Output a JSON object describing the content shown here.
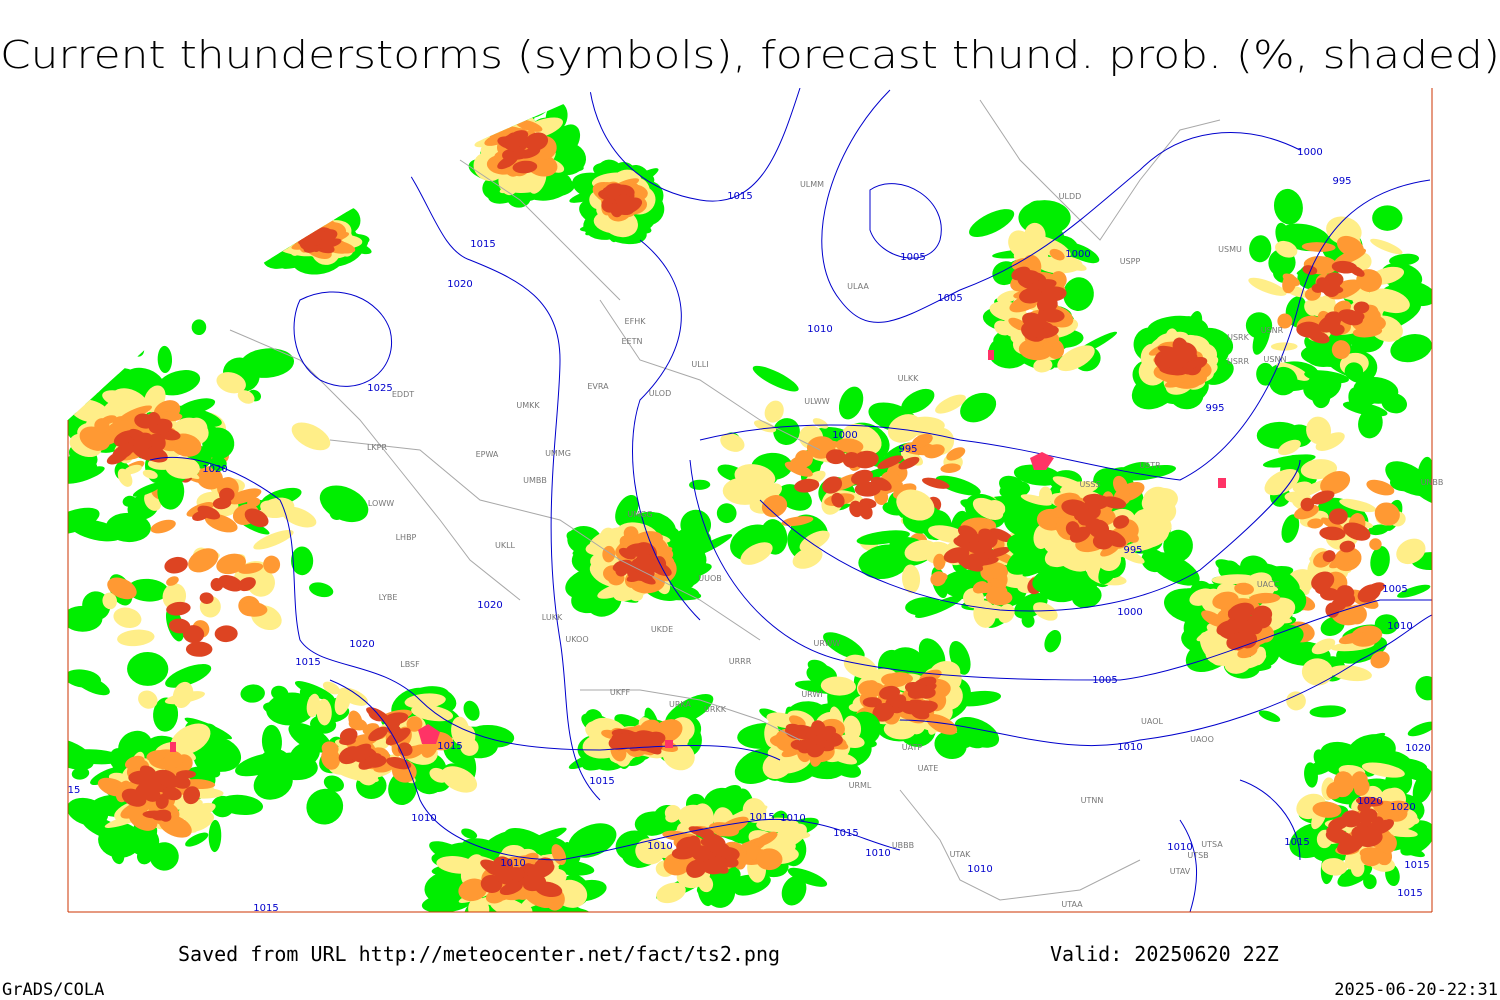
{
  "header": {
    "title": "Current thunderstorms (symbols), forecast thund. prob. (%, shaded)"
  },
  "map": {
    "isobar_labels": [
      "1015",
      "1015",
      "1020",
      "1025",
      "1005",
      "1005",
      "1010",
      "1000",
      "1000",
      "995",
      "995",
      "1000",
      "995",
      "1020",
      "995",
      "1000",
      "1005",
      "1010",
      "1020",
      "1020",
      "1015",
      "1005",
      "1015",
      "1010",
      "1015",
      "1010",
      "1015",
      "1010",
      "1015",
      "1010",
      "1010",
      "1010",
      "1010",
      "1010",
      "1015",
      "1020",
      "1020",
      "1015",
      "1015",
      "1015",
      "1020",
      "15"
    ],
    "stations": [
      "ULMM",
      "ULDD",
      "ULAA",
      "USRK",
      "USNR",
      "USRR",
      "USNN",
      "USMU",
      "USPP",
      "ULKK",
      "ULWW",
      "EFHK",
      "EETN",
      "ULLI",
      "EVRA",
      "ULOD",
      "UMKK",
      "EPWA",
      "UMMG",
      "UMBB",
      "UMGG",
      "LKPR",
      "LOWW",
      "LHBP",
      "UKLL",
      "LYBE",
      "LUKK",
      "UKOO",
      "UKDE",
      "UUOB",
      "URRR",
      "LBSF",
      "UKFF",
      "URKA",
      "URKK",
      "URWI",
      "URWW",
      "UATE",
      "UATP",
      "URML",
      "UTNN",
      "UAOL",
      "UAOO",
      "UBBB",
      "UTAK",
      "UTSA",
      "UTSB",
      "UTAV",
      "UTAA",
      "USTR",
      "USSS",
      "EDDT",
      "UACC",
      "UNBB"
    ]
  },
  "footer": {
    "source": "Saved from URL http://meteocenter.net/fact/ts2.png",
    "valid": "Valid: 20250620 22Z",
    "software": "GrADS/COLA",
    "timestamp": "2025-06-20-22:31"
  }
}
